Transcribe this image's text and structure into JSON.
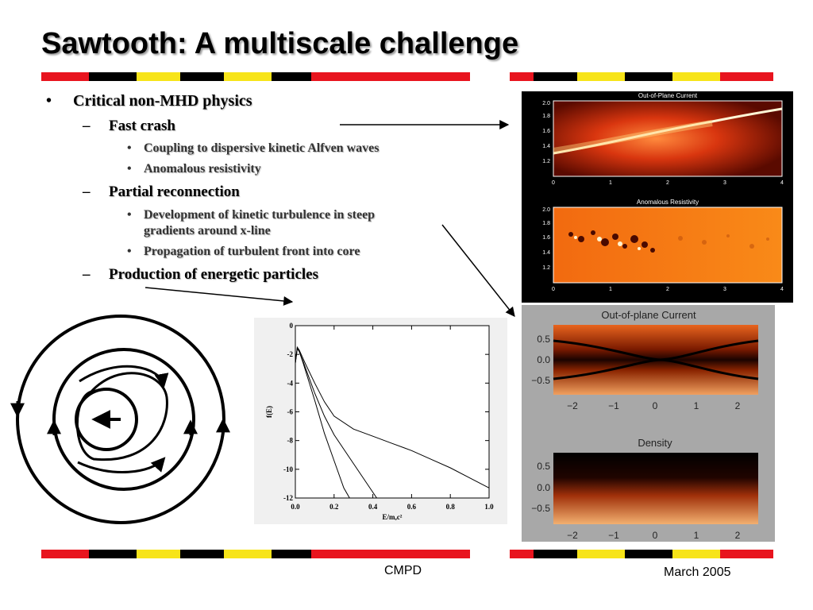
{
  "title": "Sawtooth: A multiscale challenge",
  "bullets": {
    "main": "Critical non-MHD physics",
    "fast_crash": "Fast crash",
    "coupling": "Coupling to dispersive kinetic Alfven waves",
    "anom_res": "Anomalous resistivity",
    "partial": "Partial reconnection",
    "dev_line1": "Development of kinetic turbulence in steep",
    "dev_line2": "gradients around x-line",
    "propagation": "Propagation of turbulent front into core",
    "production": "Production of energetic particles",
    "bullet_l1": "•",
    "dash": "–",
    "bullet_l3": "•"
  },
  "panel_top": {
    "plot1_title": "Out-of-Plane Current",
    "plot2_title": "Anomalous Resistivity",
    "y_ticks": [
      "2.0",
      "1.8",
      "1.6",
      "1.4",
      "1.2"
    ],
    "x_ticks": [
      "0",
      "1",
      "2",
      "3",
      "4"
    ]
  },
  "panel_bottom": {
    "plot1_title": "Out-of-plane Current",
    "plot2_title": "Density",
    "y_ticks": [
      "0.5",
      "0.0",
      "−0.5"
    ],
    "x_ticks": [
      "−2",
      "−1",
      "0",
      "1",
      "2"
    ]
  },
  "footer": {
    "left": "CMPD",
    "right": "March 2005"
  },
  "colors": {
    "band_red": "#e8141e",
    "band_yellow": "#f7e419",
    "band_black": "#000000",
    "band_white": "#ffffff"
  },
  "chart_data": {
    "type": "line",
    "title": "",
    "xlabel": "E/mₑc²",
    "ylabel": "f(E)",
    "xlim": [
      0.0,
      1.0
    ],
    "ylim": [
      -12,
      0
    ],
    "x_ticks": [
      "0.0",
      "0.2",
      "0.4",
      "0.6",
      "0.8",
      "1.0"
    ],
    "y_ticks": [
      "0",
      "-2",
      "-4",
      "-6",
      "-8",
      "-10",
      "-12"
    ],
    "series": [
      {
        "x": [
          0.0,
          0.01,
          0.02,
          0.04,
          0.07,
          0.1,
          0.15,
          0.2,
          0.25,
          0.28
        ],
        "y": [
          -2.6,
          -1.6,
          -1.8,
          -2.6,
          -3.9,
          -5.2,
          -7.5,
          -9.4,
          -11.3,
          -12.0
        ]
      },
      {
        "x": [
          0.0,
          0.01,
          0.02,
          0.04,
          0.07,
          0.1,
          0.15,
          0.2,
          0.3,
          0.38,
          0.42
        ],
        "y": [
          -2.6,
          -1.6,
          -1.8,
          -2.5,
          -3.6,
          -4.7,
          -6.3,
          -7.6,
          -9.6,
          -11.2,
          -12.0
        ]
      },
      {
        "x": [
          0.0,
          0.01,
          0.02,
          0.05,
          0.1,
          0.15,
          0.2,
          0.3,
          0.4,
          0.5,
          0.6,
          0.7,
          0.8,
          0.9,
          1.0
        ],
        "y": [
          -2.6,
          -1.5,
          -1.7,
          -2.6,
          -4.0,
          -5.3,
          -6.3,
          -7.2,
          -7.7,
          -8.2,
          -8.7,
          -9.3,
          -9.9,
          -10.6,
          -11.3
        ]
      }
    ]
  }
}
